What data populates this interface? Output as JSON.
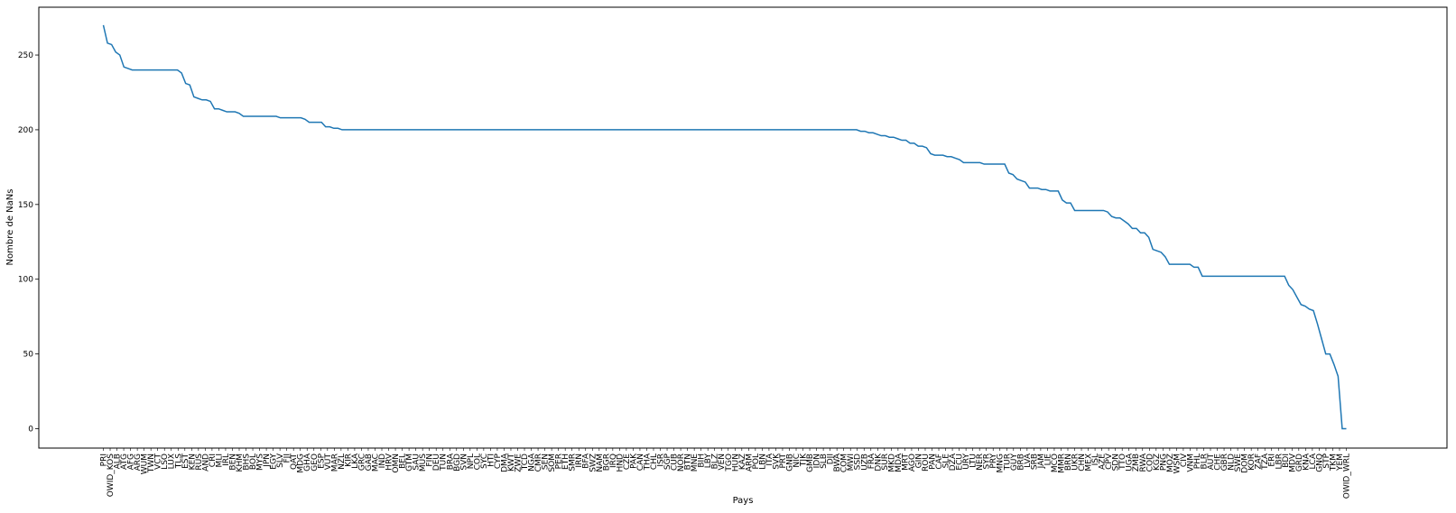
{
  "chart_data": {
    "type": "line",
    "title": "",
    "xlabel": "Pays",
    "ylabel": "Nombre de NaNs",
    "ylim": [
      -13,
      282
    ],
    "yticks": [
      0,
      50,
      100,
      150,
      200,
      250
    ],
    "grid": false,
    "line_color": "#1f77b4",
    "series": [
      {
        "values": [
          270,
          258,
          257,
          252,
          250,
          242,
          241,
          240,
          240,
          240,
          240,
          240,
          240,
          240,
          240,
          240,
          240,
          240,
          240,
          238,
          231,
          230,
          222,
          221,
          220,
          220,
          219,
          214,
          214,
          213,
          212,
          212,
          212,
          211,
          209,
          209,
          209,
          209,
          209,
          209,
          209,
          209,
          209,
          208,
          208,
          208,
          208,
          208,
          208,
          207,
          205,
          205,
          205,
          205,
          202,
          202,
          201,
          201,
          200,
          200,
          200,
          200,
          200,
          200,
          200,
          200,
          200,
          200,
          200,
          200,
          200,
          200,
          200,
          200,
          200,
          200,
          200,
          200,
          200,
          200,
          200,
          200,
          200,
          200,
          200,
          200,
          200,
          200,
          200,
          200,
          200,
          200,
          200,
          200,
          200,
          200,
          200,
          200,
          200,
          200,
          200,
          200,
          200,
          200,
          200,
          200,
          200,
          200,
          200,
          200,
          200,
          200,
          200,
          200,
          200,
          200,
          200,
          200,
          200,
          200,
          200,
          200,
          200,
          200,
          200,
          200,
          200,
          200,
          200,
          200,
          200,
          200,
          200,
          200,
          200,
          200,
          200,
          200,
          200,
          200,
          200,
          200,
          200,
          200,
          200,
          200,
          200,
          200,
          200,
          200,
          200,
          200,
          200,
          200,
          200,
          200,
          200,
          200,
          200,
          200,
          200,
          200,
          200,
          200,
          200,
          200,
          200,
          200,
          200,
          200,
          200,
          200,
          200,
          200,
          200,
          200,
          200,
          200,
          200,
          200,
          200,
          200,
          200,
          200,
          199,
          199,
          198,
          198,
          197,
          196,
          196,
          195,
          195,
          194,
          193,
          193,
          191,
          191,
          189,
          189,
          188,
          184,
          183,
          183,
          183,
          182,
          182,
          181,
          180,
          178,
          178,
          178,
          178,
          178,
          177,
          177,
          177,
          177,
          177,
          177,
          171,
          170,
          167,
          166,
          165,
          161,
          161,
          161,
          160,
          160,
          159,
          159,
          159,
          153,
          151,
          151,
          146,
          146,
          146,
          146,
          146,
          146,
          146,
          146,
          145,
          142,
          141,
          141,
          139,
          137,
          134,
          134,
          131,
          131,
          128,
          120,
          119,
          118,
          115,
          110,
          110,
          110,
          110,
          110,
          110,
          108,
          108,
          102,
          102,
          102,
          102,
          102,
          102,
          102,
          102,
          102,
          102,
          102,
          102,
          102,
          102,
          102,
          102,
          102,
          102,
          102,
          102,
          102,
          96,
          93,
          88,
          83,
          82,
          80,
          79,
          70,
          60,
          50,
          50,
          43,
          35,
          0,
          0
        ]
      }
    ],
    "x_tick_labels": [
      "PRI",
      "OWID_KOS",
      "ALB",
      "ATG",
      "AFG",
      "ARG",
      "WUM",
      "TWN",
      "VCT",
      "LSO",
      "LUX",
      "TLS",
      "EST",
      "KEN",
      "RUS",
      "AND",
      "CRI",
      "MLI",
      "IRL",
      "BEN",
      "KHM",
      "BHS",
      "BOL",
      "MYS",
      "JPN",
      "EGY",
      "SLV",
      "FJI",
      "QAT",
      "MDG",
      "GHA",
      "GEO",
      "ESP",
      "VUT",
      "MAR",
      "NZL",
      "KIR",
      "LKA",
      "GRC",
      "GAB",
      "MAC",
      "IND",
      "HRV",
      "OMN",
      "BEL",
      "GTM",
      "SAU",
      "MUS",
      "FIN",
      "DEU",
      "TUN",
      "BRA",
      "BGD",
      "SVN",
      "NPL",
      "COL",
      "SYC",
      "HTI",
      "CYP",
      "DMA",
      "KWT",
      "ZWE",
      "TCD",
      "NGA",
      "CMR",
      "SEN",
      "SOM",
      "PER",
      "ETH",
      "SMR",
      "IRN",
      "BFA",
      "SWZ",
      "NAM",
      "BGR",
      "IRQ",
      "HND",
      "CZE",
      "PAK",
      "CAN",
      "THA",
      "CHL",
      "ISR",
      "SGP",
      "CUB",
      "NOR",
      "BTN",
      "MNE",
      "BIH",
      "LBY",
      "BLZ",
      "VEN",
      "TGO",
      "HUN",
      "KAZ",
      "ARM",
      "POL",
      "LBN",
      "ITA",
      "SVK",
      "PRT",
      "GNB",
      "NIC",
      "TJK",
      "GMB",
      "IDN",
      "SLB",
      "DJI",
      "BWA",
      "COM",
      "MWI",
      "SSD",
      "UZB",
      "FRA",
      "DNK",
      "SUR",
      "MKD",
      "MDA",
      "MRT",
      "AGO",
      "GIN",
      "ROU",
      "PAN",
      "CAF",
      "SLE",
      "DZA",
      "ECU",
      "URY",
      "LTU",
      "NER",
      "SYR",
      "PRY",
      "MNG",
      "TUR",
      "GUY",
      "BRB",
      "LVA",
      "SRB",
      "JAM",
      "LIE",
      "MCO",
      "MMR",
      "BRN",
      "UKR",
      "CHN",
      "MEX",
      "ISL",
      "AZE",
      "CPV",
      "SDN",
      "TTO",
      "UGA",
      "ZMB",
      "RWA",
      "COD",
      "KGZ",
      "PNG",
      "MOZ",
      "WSM",
      "CIV",
      "VNM",
      "PHL",
      "BLR",
      "AUT",
      "CHE",
      "GBR",
      "NLD",
      "SWE",
      "DOM",
      "KOR",
      "ZAF",
      "TZA",
      "ERI",
      "LBR",
      "BDI",
      "MDV",
      "GRD",
      "KNA",
      "LCA",
      "GNQ",
      "STP",
      "TKM",
      "YEM",
      "OWID_WRL"
    ]
  }
}
